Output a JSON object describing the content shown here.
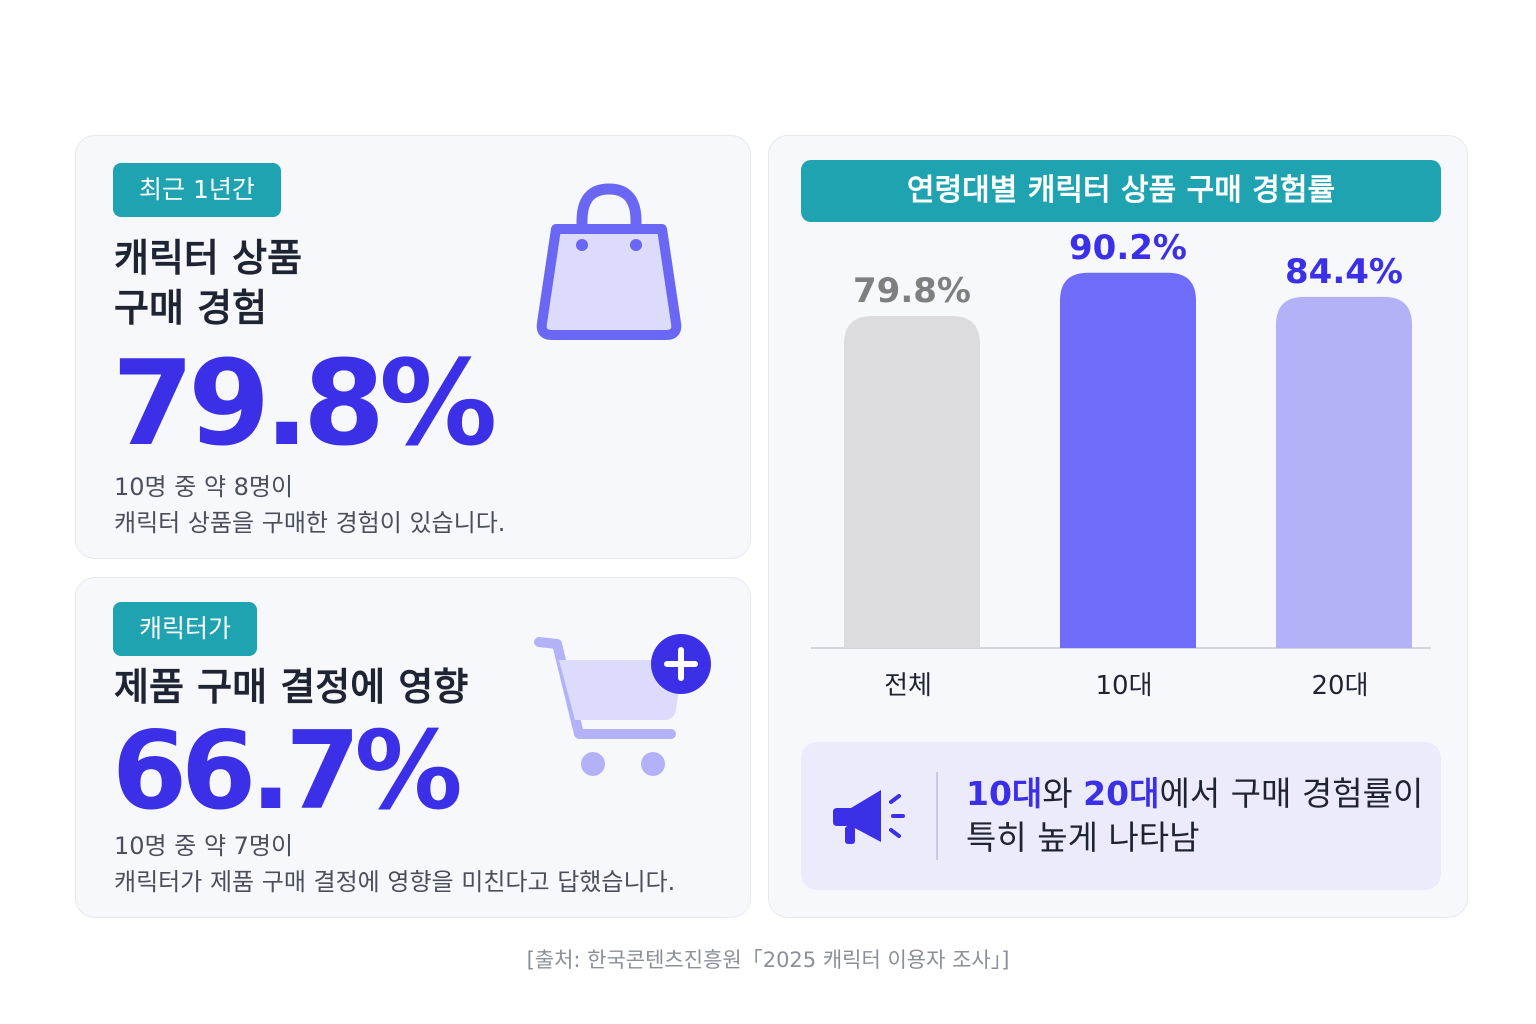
{
  "card1": {
    "tag": "최근 1년간",
    "heading_line1": "캐릭터 상품",
    "heading_line2": "구매 경험",
    "stat": "79.8%",
    "desc_line1": "10명 중 약 8명이",
    "desc_line2": "캐릭터 상품을 구매한 경험이 있습니다.",
    "icon": "shopping-bag-icon"
  },
  "card2": {
    "tag": "캐릭터가",
    "heading": "제품 구매 결정에 영향",
    "stat": "66.7%",
    "desc_line1": "10명 중 약 7명이",
    "desc_line2": "캐릭터가 제품 구매 결정에 영향을 미친다고 답했습니다.",
    "icon": "shopping-cart-plus-icon"
  },
  "chart_data": {
    "type": "bar",
    "title": "연령대별 캐릭터 상품 구매 경험률",
    "categories": [
      "전체",
      "10대",
      "20대"
    ],
    "values": [
      79.8,
      90.2,
      84.4
    ],
    "labels": [
      "79.8%",
      "90.2%",
      "84.4%"
    ],
    "colors": [
      "#dcdcdf",
      "#6e6cf8",
      "#b3b2f8"
    ],
    "label_colors": [
      "#7f7f7f",
      "#3b30e8",
      "#3b30e8"
    ],
    "ylim": [
      0,
      100
    ],
    "grid": false
  },
  "callout": {
    "part1": "10대",
    "part2": "와 ",
    "part3": "20대",
    "part4": "에서 구매 경험률이",
    "line2": "특히 높게 나타남",
    "icon": "megaphone-icon"
  },
  "source": "[출처: 한국콘텐츠진흥원「2025 캐릭터 이용자 조사」]",
  "colors": {
    "accent": "#3b30e8",
    "teal": "#1fa3b1",
    "card_bg": "#f7f8fc"
  }
}
